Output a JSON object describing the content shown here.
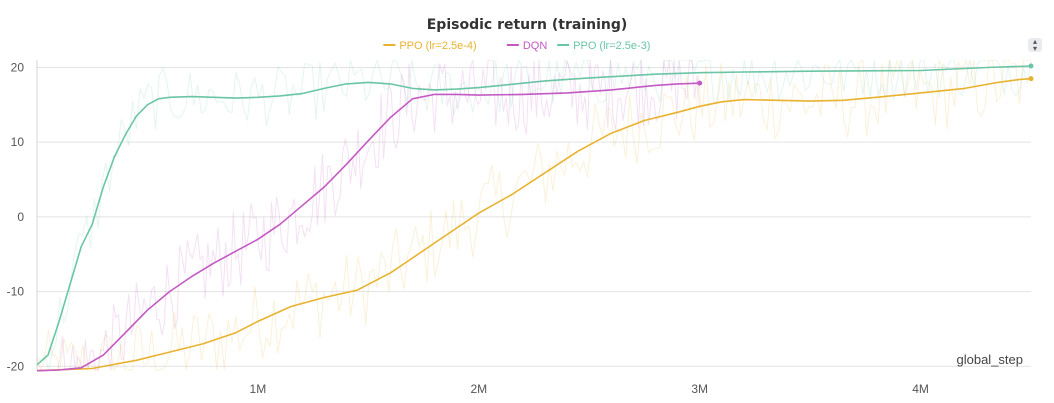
{
  "chart_data": {
    "type": "line",
    "title": "Episodic return (training)",
    "xlabel": "global_step",
    "ylabel": "",
    "xlim": [
      0,
      4500000
    ],
    "ylim": [
      -20.5,
      21
    ],
    "x_ticks": [
      {
        "value": 1000000,
        "label": "1M"
      },
      {
        "value": 2000000,
        "label": "2M"
      },
      {
        "value": 3000000,
        "label": "3M"
      },
      {
        "value": 4000000,
        "label": "4M"
      }
    ],
    "y_ticks": [
      {
        "value": 20,
        "label": "20"
      },
      {
        "value": 10,
        "label": "10"
      },
      {
        "value": 0,
        "label": "0"
      },
      {
        "value": -10,
        "label": "-10"
      },
      {
        "value": -20,
        "label": "-20"
      }
    ],
    "grid": true,
    "legend_position": "top-center",
    "series": [
      {
        "name": "PPO (lr=2.5e-4)",
        "color": "#e8b22f",
        "x": [
          0,
          250000,
          450000,
          600000,
          750000,
          900000,
          1000000,
          1150000,
          1300000,
          1450000,
          1600000,
          1700000,
          1850000,
          2000000,
          2150000,
          2300000,
          2450000,
          2600000,
          2750000,
          2900000,
          3000000,
          3100000,
          3200000,
          3350000,
          3500000,
          3650000,
          3800000,
          4000000,
          4200000,
          4350000,
          4450000,
          4500000
        ],
        "values": [
          -20.6,
          -20.3,
          -19.2,
          -18.1,
          -17.0,
          -15.5,
          -14.0,
          -12.0,
          -10.8,
          -9.8,
          -7.5,
          -5.5,
          -2.5,
          0.5,
          3.0,
          5.9,
          8.8,
          11.2,
          12.9,
          14.0,
          14.8,
          15.4,
          15.7,
          15.6,
          15.5,
          15.6,
          16.0,
          16.6,
          17.2,
          18.0,
          18.4,
          18.5
        ]
      },
      {
        "name": "DQN",
        "color": "#c359c3",
        "x": [
          0,
          100000,
          200000,
          300000,
          400000,
          500000,
          600000,
          700000,
          800000,
          900000,
          1000000,
          1100000,
          1200000,
          1300000,
          1400000,
          1500000,
          1600000,
          1700000,
          1800000,
          1900000,
          2000000,
          2200000,
          2400000,
          2600000,
          2800000,
          2900000,
          3000000
        ],
        "values": [
          -20.6,
          -20.5,
          -20.2,
          -18.5,
          -15.5,
          -12.5,
          -10.0,
          -8.0,
          -6.2,
          -4.6,
          -3.0,
          -1.0,
          1.5,
          4.0,
          7.0,
          10.2,
          13.3,
          15.8,
          16.4,
          16.4,
          16.3,
          16.4,
          16.6,
          17.0,
          17.6,
          17.8,
          17.9
        ]
      },
      {
        "name": "PPO (lr=2.5e-3)",
        "color": "#6ac5a4",
        "x": [
          0,
          50000,
          100000,
          150000,
          200000,
          250000,
          300000,
          350000,
          400000,
          450000,
          500000,
          550000,
          600000,
          700000,
          800000,
          900000,
          1000000,
          1100000,
          1200000,
          1300000,
          1400000,
          1500000,
          1600000,
          1700000,
          1800000,
          1900000,
          2000000,
          2100000,
          2300000,
          2500000,
          2800000,
          3000000,
          3200000,
          3500000,
          4000000,
          4300000,
          4500000
        ],
        "values": [
          -19.8,
          -18.5,
          -14.0,
          -9.0,
          -4.0,
          -1.0,
          4.0,
          8.0,
          11.0,
          13.5,
          15.0,
          15.8,
          16.0,
          16.1,
          16.0,
          15.9,
          16.0,
          16.2,
          16.5,
          17.2,
          17.8,
          18.0,
          17.8,
          17.2,
          17.0,
          17.1,
          17.3,
          17.6,
          18.2,
          18.6,
          19.1,
          19.3,
          19.4,
          19.5,
          19.6,
          20.0,
          20.2
        ]
      }
    ]
  }
}
